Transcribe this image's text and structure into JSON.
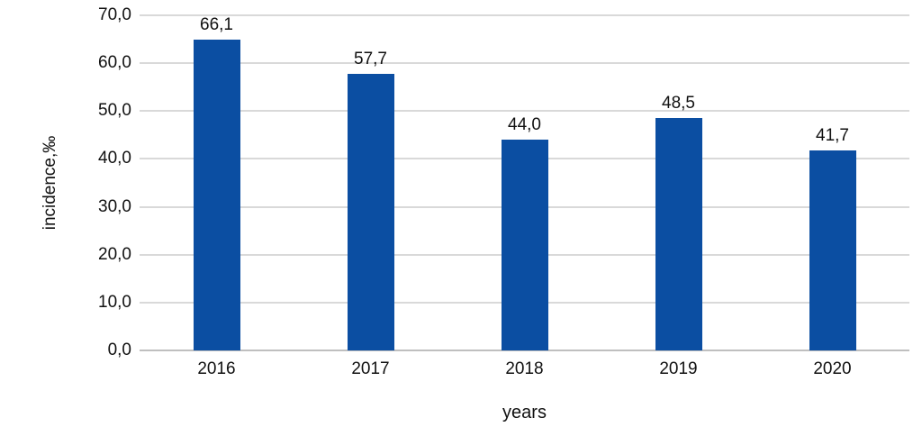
{
  "chart_data": {
    "type": "bar",
    "categories": [
      "2016",
      "2017",
      "2018",
      "2019",
      "2020"
    ],
    "values": [
      66.1,
      57.7,
      44.0,
      48.5,
      41.7
    ],
    "value_labels": [
      "66,1",
      "57,7",
      "44,0",
      "48,5",
      "41,7"
    ],
    "title": "",
    "xlabel": "years",
    "ylabel": "incidence,‰",
    "ylim": [
      0,
      70
    ],
    "ytick_step": 10,
    "ytick_labels": [
      "0,0",
      "10,0",
      "20,0",
      "30,0",
      "40,0",
      "50,0",
      "60,0",
      "70,0"
    ],
    "grid": true,
    "legend": "none",
    "colors": {
      "bar": "#0B4EA2",
      "gridline": "#D9D9D9",
      "axis_line": "#BFBFBF",
      "text": "#111111"
    }
  }
}
